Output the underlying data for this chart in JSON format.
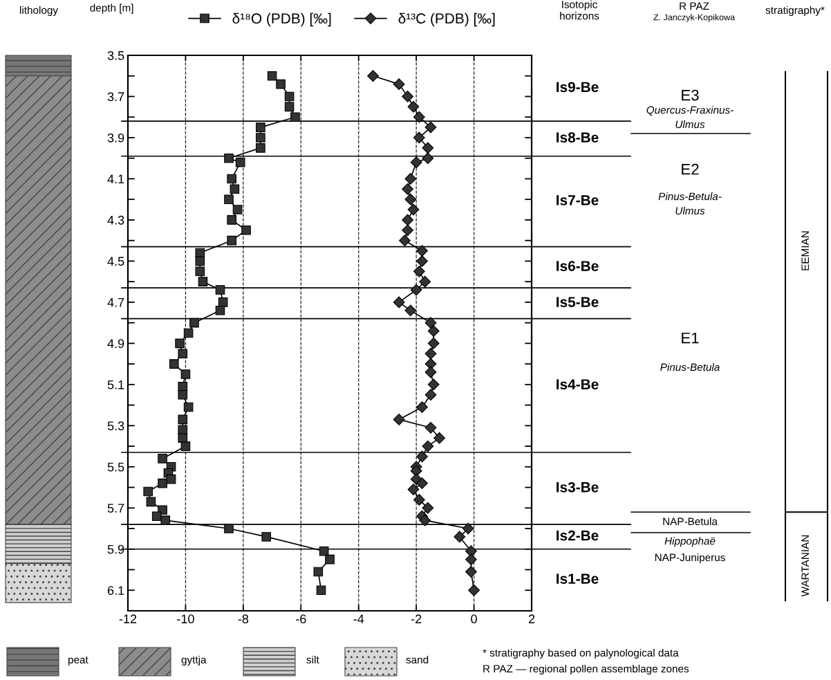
{
  "chart_data": {
    "type": "line",
    "ylabel": "depth [m]",
    "series": [
      {
        "name": "δ¹⁸O (PDB) [‰]",
        "color": "#333333",
        "marker": "square",
        "x": [
          -7.0,
          -6.7,
          -6.4,
          -6.4,
          -6.2,
          -7.4,
          -7.4,
          -7.4,
          -8.5,
          -8.1,
          -8.4,
          -8.3,
          -8.5,
          -8.2,
          -8.4,
          -7.9,
          -8.4,
          -9.5,
          -9.5,
          -9.5,
          -9.4,
          -8.8,
          -8.7,
          -8.8,
          -9.7,
          -9.9,
          -10.2,
          -10.1,
          -10.4,
          -10.0,
          -10.1,
          -10.1,
          -9.9,
          -10.1,
          -10.1,
          -10.1,
          -10.0,
          -10.8,
          -10.5,
          -10.6,
          -10.5,
          -10.8,
          -11.3,
          -11.2,
          -10.8,
          -11.0,
          -10.7,
          -8.5,
          -7.2,
          -5.2,
          -5.0,
          -5.4,
          -5.3
        ],
        "values": [
          3.6,
          3.64,
          3.7,
          3.75,
          3.8,
          3.85,
          3.9,
          3.95,
          4.0,
          4.02,
          4.1,
          4.15,
          4.2,
          4.25,
          4.3,
          4.35,
          4.4,
          4.46,
          4.5,
          4.55,
          4.6,
          4.64,
          4.7,
          4.74,
          4.8,
          4.85,
          4.9,
          4.95,
          5.0,
          5.05,
          5.11,
          5.15,
          5.21,
          5.27,
          5.32,
          5.36,
          5.4,
          5.46,
          5.5,
          5.53,
          5.56,
          5.58,
          5.62,
          5.67,
          5.71,
          5.74,
          5.76,
          5.8,
          5.84,
          5.91,
          5.95,
          6.01,
          6.1
        ]
      },
      {
        "name": "δ¹³C (PDB) [‰]",
        "color": "#333333",
        "marker": "diamond",
        "x": [
          -3.5,
          -2.6,
          -2.3,
          -2.1,
          -1.9,
          -1.5,
          -1.9,
          -1.6,
          -1.6,
          -2.0,
          -2.2,
          -2.3,
          -2.2,
          -2.1,
          -2.3,
          -2.3,
          -2.4,
          -1.8,
          -1.8,
          -1.9,
          -1.7,
          -2.0,
          -2.6,
          -2.2,
          -1.5,
          -1.4,
          -1.4,
          -1.5,
          -1.5,
          -1.5,
          -1.4,
          -1.5,
          -1.8,
          -2.6,
          -1.5,
          -1.2,
          -1.6,
          -1.8,
          -2.0,
          -2.0,
          -2.0,
          -1.8,
          -2.1,
          -1.9,
          -1.6,
          -1.8,
          -1.7,
          -0.2,
          -0.5,
          -0.1,
          -0.1,
          -0.1,
          0.0
        ],
        "values": [
          3.6,
          3.64,
          3.7,
          3.75,
          3.8,
          3.85,
          3.9,
          3.95,
          4.0,
          4.02,
          4.1,
          4.15,
          4.2,
          4.25,
          4.3,
          4.35,
          4.4,
          4.45,
          4.5,
          4.55,
          4.6,
          4.64,
          4.7,
          4.74,
          4.8,
          4.84,
          4.9,
          4.95,
          5.0,
          5.04,
          5.1,
          5.15,
          5.21,
          5.27,
          5.31,
          5.36,
          5.4,
          5.45,
          5.5,
          5.52,
          5.56,
          5.58,
          5.61,
          5.66,
          5.7,
          5.74,
          5.76,
          5.8,
          5.84,
          5.91,
          5.95,
          6.01,
          6.1
        ]
      }
    ],
    "xlim": [
      -12,
      2
    ],
    "xticks": [
      -12,
      -10,
      -8,
      -6,
      -4,
      -2,
      0,
      2
    ],
    "ylim": [
      6.2,
      3.5
    ],
    "yticks": [
      3.5,
      {
        "value": 3.6,
        "label": null
      },
      3.7,
      {
        "value": 3.8,
        "label": null
      },
      3.9,
      {
        "value": 4.0,
        "label": null
      },
      4.1,
      {
        "value": 4.2,
        "label": null
      },
      4.3,
      {
        "value": 4.4,
        "label": null
      },
      4.5,
      {
        "value": 4.6,
        "label": null
      },
      4.7,
      {
        "value": 4.8,
        "label": null
      },
      4.9,
      {
        "value": 5.0,
        "label": null
      },
      5.1,
      {
        "value": 5.2,
        "label": null
      },
      5.3,
      {
        "value": 5.4,
        "label": null
      },
      5.5,
      {
        "value": 5.6,
        "label": null
      },
      5.7,
      {
        "value": 5.8,
        "label": null
      },
      5.9,
      {
        "value": 6.0,
        "label": null
      },
      6.1
    ],
    "grid": "x",
    "legend": "top",
    "line_style": "solid",
    "ref_lines": [
      {
        "axis": "y",
        "value": 3.82
      },
      {
        "axis": "y",
        "value": 3.99
      },
      {
        "axis": "y",
        "value": 4.43
      },
      {
        "axis": "y",
        "value": 4.63
      },
      {
        "axis": "y",
        "value": 4.78
      },
      {
        "axis": "y",
        "value": 5.43
      },
      {
        "axis": "y",
        "value": 5.78
      },
      {
        "axis": "y",
        "value": 5.9
      }
    ],
    "annotations": [
      "Is9-Be",
      "Is8-Be",
      "Is7-Be",
      "Is6-Be",
      "Is5-Be",
      "Is4-Be",
      "Is3-Be",
      "Is2-Be",
      "Is1-Be",
      "lithology",
      "Isotopic\nhorizons",
      "R PAZ",
      "Z. Janczyk-Kopikowa",
      "stratigraphy*",
      "E3",
      "Quercus-Fraxinus-",
      "Ulmus",
      "E2",
      "Pinus-Betula-",
      "Ulmus",
      "E1",
      "Pinus-Betula",
      "NAP-Betula",
      "Hippophaë",
      "NAP-Juniperus",
      "EEMIAN",
      "WARTANIAN",
      "peat",
      "gyttja",
      "silt",
      "sand",
      "* stratigraphy based on palynological data",
      "R PAZ — regional pollen assemblage zones"
    ]
  }
}
